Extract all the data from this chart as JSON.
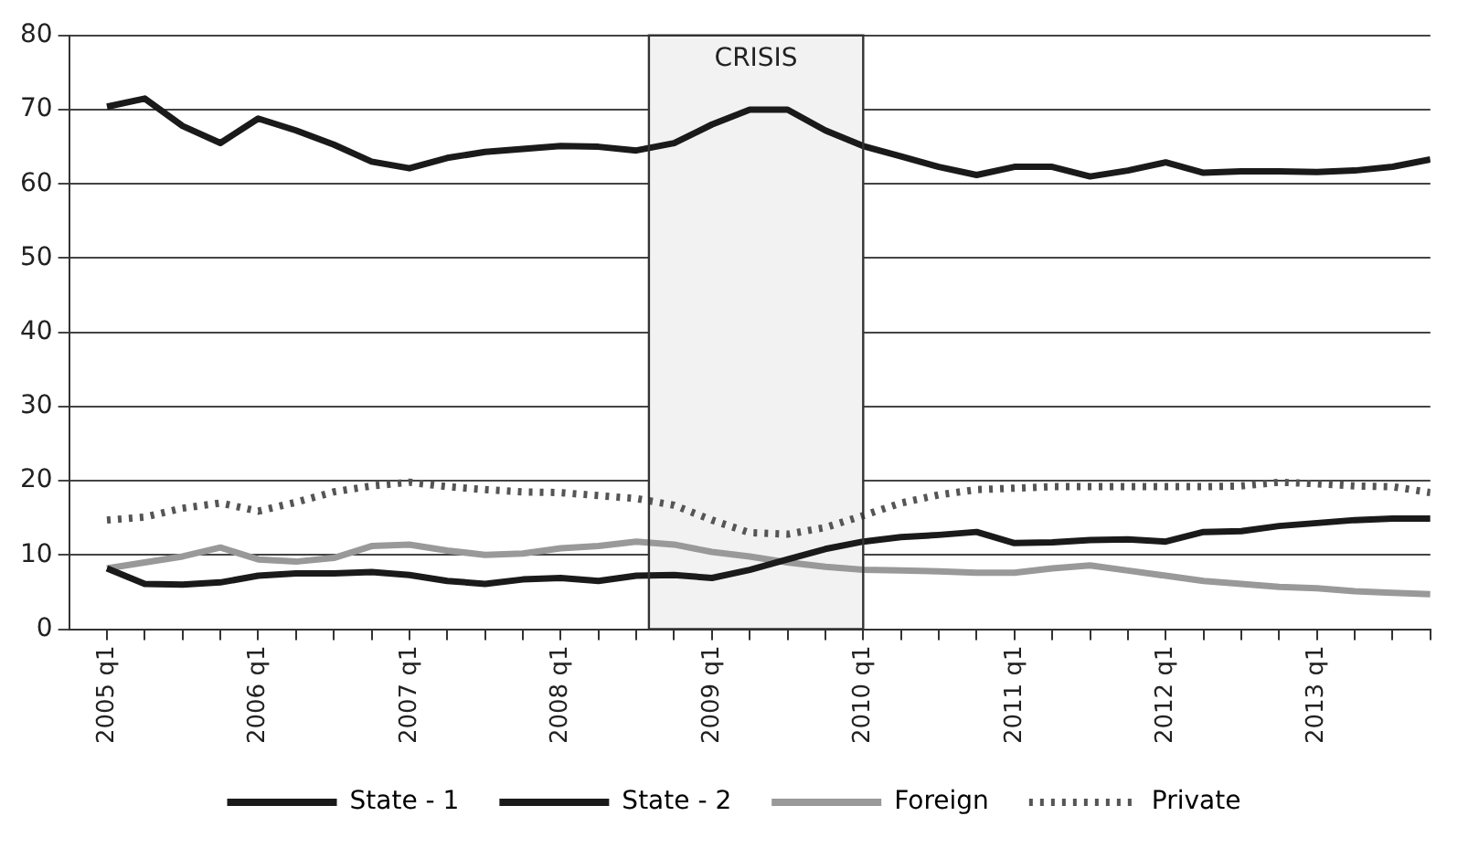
{
  "chart_data": {
    "type": "line",
    "x": [
      "2005-01",
      "2005-04",
      "2005-07",
      "2005-10",
      "2006-01",
      "2006-04",
      "2006-07",
      "2006-10",
      "2007-01",
      "2007-04",
      "2007-07",
      "2007-10",
      "2008-01",
      "2008-04",
      "2008-07",
      "2008-10",
      "2009-01",
      "2009-04",
      "2009-07",
      "2009-10",
      "2010-01",
      "2010-04",
      "2010-07",
      "2010-10",
      "2011-01",
      "2011-04",
      "2011-07",
      "2011-10",
      "2012-01",
      "2012-04",
      "2012-07",
      "2012-10",
      "2013-01",
      "2013-04",
      "2013-07",
      "2013-10"
    ],
    "series": [
      {
        "name": "State - 1",
        "color": "#1a1a1a",
        "values": [
          70.4,
          71.5,
          67.8,
          65.5,
          68.8,
          67.2,
          65.3,
          63,
          62.1,
          63.5,
          64.3,
          64.7,
          65.1,
          65,
          64.5,
          65.5,
          68,
          70,
          70,
          67.2,
          65.1,
          63.7,
          62.3,
          61.2,
          62.3,
          62.3,
          61,
          61.8,
          62.9,
          61.5,
          61.7,
          61.7,
          61.6,
          61.8,
          62.3,
          63.3
        ]
      },
      {
        "name": "State - 2",
        "color": "#1a1a1a",
        "values": [
          8.2,
          6.1,
          6,
          6.3,
          7.2,
          7.5,
          7.5,
          7.7,
          7.3,
          6.5,
          6.1,
          6.7,
          6.9,
          6.5,
          7.2,
          7.3,
          6.9,
          8,
          9.4,
          10.8,
          11.8,
          12.4,
          12.7,
          13.1,
          11.6,
          11.7,
          12,
          12.1,
          11.8,
          13.1,
          13.2,
          13.9,
          14.3,
          14.7,
          14.9,
          14.9
        ]
      },
      {
        "name": "Foreign",
        "color": "#999999",
        "values": [
          8.2,
          9,
          9.8,
          11,
          9.4,
          9.1,
          9.6,
          11.2,
          11.4,
          10.6,
          10,
          10.2,
          10.9,
          11.2,
          11.8,
          11.4,
          10.4,
          9.8,
          9,
          8.4,
          8,
          7.9,
          7.8,
          7.6,
          7.6,
          8.2,
          8.6,
          7.9,
          7.2,
          6.5,
          6.1,
          5.7,
          5.5,
          5.1,
          4.9,
          4.7
        ]
      },
      {
        "name": "Private",
        "color": "#555555",
        "line_style": "dotted",
        "values": [
          14.7,
          15.1,
          16.3,
          17,
          15.9,
          17.1,
          18.5,
          19.3,
          19.8,
          19.2,
          18.8,
          18.5,
          18.4,
          18,
          17.6,
          16.7,
          14.7,
          13,
          12.8,
          13.7,
          15.3,
          17,
          18.1,
          18.8,
          19,
          19.2,
          19.2,
          19.2,
          19.2,
          19.2,
          19.3,
          19.8,
          19.6,
          19.3,
          19.2,
          18.4
        ]
      }
    ],
    "xlim": [
      "2004-10",
      "2013-10"
    ],
    "xticks": [
      {
        "value": "2005-01",
        "label": "2005 q1"
      },
      {
        "value": "2005-04",
        "label": null
      },
      {
        "value": "2005-07",
        "label": null
      },
      {
        "value": "2005-10",
        "label": null
      },
      {
        "value": "2006-01",
        "label": "2006 q1"
      },
      {
        "value": "2006-04",
        "label": null
      },
      {
        "value": "2006-07",
        "label": null
      },
      {
        "value": "2006-10",
        "label": null
      },
      {
        "value": "2007-01",
        "label": "2007 q1"
      },
      {
        "value": "2007-04",
        "label": null
      },
      {
        "value": "2007-07",
        "label": null
      },
      {
        "value": "2007-10",
        "label": null
      },
      {
        "value": "2008-01",
        "label": "2008 q1"
      },
      {
        "value": "2008-04",
        "label": null
      },
      {
        "value": "2008-07",
        "label": null
      },
      {
        "value": "2008-10",
        "label": null
      },
      {
        "value": "2009-01",
        "label": "2009 q1"
      },
      {
        "value": "2009-04",
        "label": null
      },
      {
        "value": "2009-07",
        "label": null
      },
      {
        "value": "2009-10",
        "label": null
      },
      {
        "value": "2010-01",
        "label": "2010 q1"
      },
      {
        "value": "2010-04",
        "label": null
      },
      {
        "value": "2010-07",
        "label": null
      },
      {
        "value": "2010-10",
        "label": null
      },
      {
        "value": "2011-01",
        "label": "2011 q1"
      },
      {
        "value": "2011-04",
        "label": null
      },
      {
        "value": "2011-07",
        "label": null
      },
      {
        "value": "2011-10",
        "label": null
      },
      {
        "value": "2012-01",
        "label": "2012 q1"
      },
      {
        "value": "2012-04",
        "label": null
      },
      {
        "value": "2012-07",
        "label": null
      },
      {
        "value": "2012-10",
        "label": null
      },
      {
        "value": "2013-01",
        "label": "2013 q1"
      },
      {
        "value": "2013-04",
        "label": null
      },
      {
        "value": "2013-07",
        "label": null
      },
      {
        "value": "2013-10",
        "label": null
      }
    ],
    "ylim": [
      0,
      80
    ],
    "yticks": [
      0,
      10,
      20,
      30,
      40,
      50,
      60,
      70,
      80
    ],
    "grid": "y",
    "legend": "bottom",
    "bands": [
      {
        "axis": "x",
        "from": "2008-08",
        "to": "2010-01",
        "label": "CRISIS",
        "color": "#f2f2f2"
      }
    ]
  }
}
